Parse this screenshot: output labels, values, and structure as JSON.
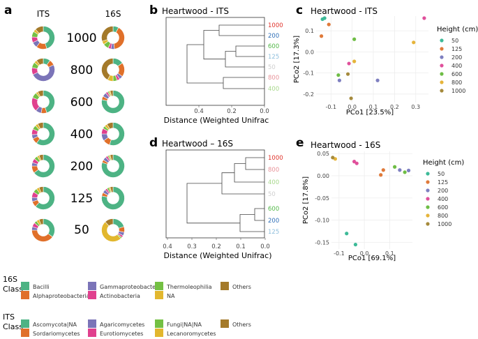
{
  "panel_letters": {
    "a": "a",
    "b": "b",
    "c": "c",
    "d": "d",
    "e": "e"
  },
  "donut_panel": {
    "col_headers": [
      "ITS",
      "16S"
    ],
    "heights": [
      "1000",
      "800",
      "600",
      "400",
      "200",
      "125",
      "50"
    ]
  },
  "colors": {
    "green": "#4db384",
    "orange": "#e0702a",
    "purple": "#7b74b8",
    "magenta": "#e0408e",
    "lime": "#74c043",
    "yellow": "#e2b72e",
    "brown": "#a47a2a",
    "h50": "#3dba98",
    "h125": "#e07a3a",
    "h200": "#7e7fc0",
    "h400": "#e0509b",
    "h600": "#6ebd45",
    "h800": "#e6b43a",
    "h1000": "#a58a3c",
    "label1000": "#e0322a",
    "label800": "#e8939a",
    "label600": "#52b848",
    "label400": "#a8d88c",
    "label200": "#2f6fb8",
    "label125": "#8fbfdc",
    "label50": "#cfcfcf"
  },
  "dendrograms": [
    {
      "title": "Heartwood - ITS",
      "xlabel": "Distance (Weighted Unifrac",
      "ticks": [
        "0.4",
        "0.2",
        "0.0"
      ],
      "leaves": [
        "1000",
        "200",
        "600",
        "125",
        "50",
        "800",
        "400"
      ]
    },
    {
      "title": "Heartwood – 16S",
      "xlabel": "Distance (Weighted Unifrac)",
      "ticks": [
        "0.4",
        "0.3",
        "0.2",
        "0.1",
        "0.0"
      ],
      "leaves": [
        "1000",
        "800",
        "400",
        "50",
        "600",
        "200",
        "125"
      ]
    }
  ],
  "legend_16s": {
    "title": "16S",
    "subtitle": "Class",
    "items": [
      {
        "label": "Bacilli",
        "color": "#4db384"
      },
      {
        "label": "Alphaproteobacteria",
        "color": "#e0702a"
      },
      {
        "label": "Gammaproteobacteria",
        "color": "#7b74b8"
      },
      {
        "label": "Actinobacteria",
        "color": "#e0408e"
      },
      {
        "label": "Thermoleophilia",
        "color": "#74c043"
      },
      {
        "label": "NA",
        "color": "#e2b72e"
      },
      {
        "label": "Others",
        "color": "#a47a2a"
      }
    ]
  },
  "legend_its": {
    "title": "ITS",
    "subtitle": "Class",
    "items": [
      {
        "label": "Ascomycota|NA",
        "color": "#4db384"
      },
      {
        "label": "Sordariomycetes",
        "color": "#e0702a"
      },
      {
        "label": "Agaricomycetes",
        "color": "#7b74b8"
      },
      {
        "label": "Eurotiomycetes",
        "color": "#e0408e"
      },
      {
        "label": "Fungi|NA|NA",
        "color": "#74c043"
      },
      {
        "label": "Lecanoromycetes",
        "color": "#e2b72e"
      },
      {
        "label": "Others",
        "color": "#a47a2a"
      }
    ]
  },
  "chart_data": [
    {
      "type": "pie",
      "description_ref": "ITS donuts (a)",
      "categories": [
        "Ascomycota|NA",
        "Sordariomycetes",
        "Agaricomycetes",
        "Eurotiomycetes",
        "Fungi|NA|NA",
        "Lecanoromycetes",
        "Others"
      ],
      "series": [
        {
          "name": "1000",
          "values": [
            45,
            15,
            8,
            8,
            8,
            4,
            12
          ]
        },
        {
          "name": "800",
          "values": [
            10,
            8,
            50,
            10,
            8,
            4,
            10
          ]
        },
        {
          "name": "600",
          "values": [
            45,
            8,
            8,
            20,
            8,
            3,
            8
          ]
        },
        {
          "name": "400",
          "values": [
            60,
            8,
            6,
            8,
            6,
            4,
            8
          ]
        },
        {
          "name": "200",
          "values": [
            65,
            10,
            5,
            6,
            5,
            3,
            6
          ]
        },
        {
          "name": "125",
          "values": [
            62,
            8,
            6,
            8,
            6,
            4,
            6
          ]
        },
        {
          "name": "50",
          "values": [
            35,
            40,
            5,
            6,
            4,
            4,
            6
          ]
        }
      ]
    },
    {
      "type": "pie",
      "description_ref": "16S donuts (a)",
      "categories": [
        "Bacilli",
        "Alphaproteobacteria",
        "Gammaproteobacteria",
        "Actinobacteria",
        "Thermoleophilia",
        "NA",
        "Others"
      ],
      "series": [
        {
          "name": "1000",
          "values": [
            8,
            40,
            5,
            4,
            8,
            5,
            30
          ]
        },
        {
          "name": "800",
          "values": [
            15,
            20,
            5,
            4,
            6,
            8,
            42
          ]
        },
        {
          "name": "600",
          "values": [
            78,
            5,
            6,
            3,
            2,
            2,
            4
          ]
        },
        {
          "name": "400",
          "values": [
            55,
            10,
            10,
            8,
            4,
            4,
            9
          ]
        },
        {
          "name": "200",
          "values": [
            80,
            4,
            5,
            3,
            2,
            2,
            4
          ]
        },
        {
          "name": "125",
          "values": [
            78,
            5,
            5,
            3,
            3,
            2,
            4
          ]
        },
        {
          "name": "50",
          "values": [
            20,
            8,
            5,
            3,
            2,
            50,
            12
          ]
        }
      ]
    },
    {
      "type": "scatter",
      "title": "Heartwood - ITS",
      "xlabel": "PCo1 [23.5%]",
      "ylabel": "PCo2 [17.3%]",
      "xlim": [
        -0.17,
        0.36
      ],
      "ylim": [
        -0.24,
        0.17
      ],
      "xticks": [
        -0.1,
        0.0,
        0.1,
        0.2,
        0.3
      ],
      "xtick_labels": [
        "-0.1",
        "0.0",
        "0.1",
        "0.2",
        "0.3"
      ],
      "yticks": [
        0.1,
        0.0,
        -0.1,
        -0.2
      ],
      "ytick_labels": [
        "0.1",
        "0.0",
        "-0.1",
        "-0.2"
      ],
      "legend_title": "Height (cm)",
      "legend_position": "right",
      "series": [
        {
          "name": "50",
          "color": "#3dba98",
          "x": [
            -0.14,
            -0.13
          ],
          "y": [
            0.155,
            0.16
          ]
        },
        {
          "name": "125",
          "color": "#e07a3a",
          "x": [
            -0.145,
            -0.11
          ],
          "y": [
            0.075,
            0.13
          ]
        },
        {
          "name": "200",
          "color": "#7e7fc0",
          "x": [
            -0.06,
            0.12
          ],
          "y": [
            -0.135,
            -0.135
          ]
        },
        {
          "name": "400",
          "color": "#e0509b",
          "x": [
            0.34,
            -0.015
          ],
          "y": [
            0.16,
            -0.055
          ]
        },
        {
          "name": "600",
          "color": "#6ebd45",
          "x": [
            0.01,
            -0.065
          ],
          "y": [
            0.06,
            -0.11
          ]
        },
        {
          "name": "800",
          "color": "#e6b43a",
          "x": [
            0.29,
            0.01
          ],
          "y": [
            0.045,
            -0.045
          ]
        },
        {
          "name": "1000",
          "color": "#a58a3c",
          "x": [
            -0.02,
            -0.005
          ],
          "y": [
            -0.105,
            -0.22
          ]
        }
      ]
    },
    {
      "type": "scatter",
      "title": "Heartwood - 16S",
      "xlabel": "PCo1 [69.1%]",
      "ylabel": "PCo2 [17.8%]",
      "xlim": [
        -0.13,
        0.19
      ],
      "ylim": [
        -0.165,
        0.055
      ],
      "xticks": [
        -0.1,
        0.0,
        0.1
      ],
      "xtick_labels": [
        "-0.1",
        "0.0",
        "0.1"
      ],
      "yticks": [
        0.05,
        0.0,
        -0.05,
        -0.1,
        -0.15
      ],
      "ytick_labels": [
        "0.05",
        "0.00",
        "-0.05",
        "-0.10",
        "-0.15"
      ],
      "legend_title": "Height (cm)",
      "legend_position": "right",
      "series": [
        {
          "name": "50",
          "color": "#3dba98",
          "x": [
            -0.07,
            -0.035
          ],
          "y": [
            -0.13,
            -0.155
          ]
        },
        {
          "name": "125",
          "color": "#e07a3a",
          "x": [
            0.065,
            0.075
          ],
          "y": [
            0.002,
            0.013
          ]
        },
        {
          "name": "200",
          "color": "#7e7fc0",
          "x": [
            0.14,
            0.175
          ],
          "y": [
            0.013,
            0.012
          ]
        },
        {
          "name": "400",
          "color": "#e0509b",
          "x": [
            -0.04,
            -0.03
          ],
          "y": [
            0.032,
            0.028
          ]
        },
        {
          "name": "600",
          "color": "#6ebd45",
          "x": [
            0.12,
            0.16
          ],
          "y": [
            0.02,
            0.008
          ]
        },
        {
          "name": "800",
          "color": "#e6b43a",
          "x": [
            -0.115
          ],
          "y": [
            0.038
          ]
        },
        {
          "name": "1000",
          "color": "#a58a3c",
          "x": [
            -0.125
          ],
          "y": [
            0.041
          ]
        }
      ]
    }
  ]
}
